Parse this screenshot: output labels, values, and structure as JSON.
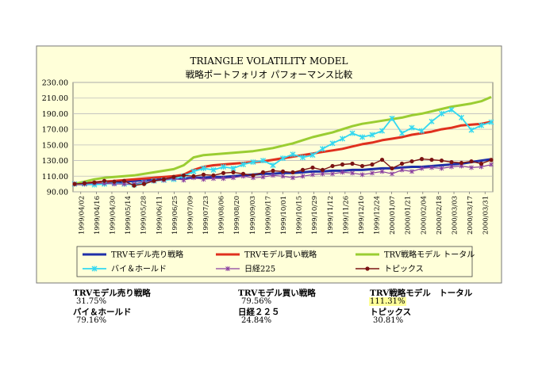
{
  "chart_data": {
    "type": "line",
    "title": "TRIANGLE VOLATILITY MODEL",
    "subtitle": "戦略ポートフォリオ パフォーマンス比較",
    "ylim": [
      90,
      230
    ],
    "yticks": [
      "230.00",
      "210.00",
      "190.00",
      "170.00",
      "150.00",
      "130.00",
      "110.00",
      "90.00"
    ],
    "ytick_values": [
      230,
      210,
      190,
      170,
      150,
      130,
      110,
      90
    ],
    "xtick_labels": [
      "1999/04/02",
      "1999/04/16",
      "1999/04/30",
      "1999/05/14",
      "1999/05/28",
      "1999/06/11",
      "1999/06/25",
      "1999/07/09",
      "1999/07/23",
      "1999/08/06",
      "1999/08/20",
      "1999/09/03",
      "1999/09/17",
      "1999/10/01",
      "1999/10/15",
      "1999/10/29",
      "1999/11/12",
      "1999/11/26",
      "1999/12/10",
      "1999/12/24",
      "2000/01/07",
      "2000/01/21",
      "2000/02/04",
      "2000/02/18",
      "2000/03/03",
      "2000/03/17",
      "2000/03/31"
    ],
    "plot_background": "#ffffd9",
    "outer_background": "#ffffd9",
    "grid": true,
    "legend_position": "bottom",
    "series": [
      {
        "name": "TRVモデル売り戦略",
        "color": "#1f2fa8",
        "marker": "none",
        "values": [
          100,
          100,
          100,
          101,
          102,
          103,
          104,
          105,
          106,
          106,
          107,
          107,
          108,
          108,
          109,
          109,
          110,
          111,
          112,
          113,
          113,
          114,
          114,
          115,
          116,
          116,
          117,
          117,
          118,
          118,
          119,
          120,
          120,
          121,
          122,
          122,
          123,
          124,
          125,
          126,
          128,
          130,
          131.75
        ]
      },
      {
        "name": "TRVモデル買い戦略",
        "color": "#e0301e",
        "marker": "none",
        "values": [
          100,
          101,
          102,
          103,
          104,
          105,
          106,
          107,
          108,
          109,
          110,
          112,
          118,
          122,
          124,
          125,
          126,
          127,
          128,
          129,
          131,
          133,
          135,
          137,
          139,
          141,
          143,
          145,
          148,
          151,
          153,
          156,
          158,
          160,
          163,
          165,
          167,
          170,
          172,
          175,
          176,
          177,
          179.56
        ]
      },
      {
        "name": "TRV戦略モデル トータル",
        "color": "#9acd32",
        "marker": "none",
        "values": [
          100,
          103,
          106,
          108,
          109,
          110,
          111,
          113,
          115,
          117,
          119,
          124,
          134,
          137,
          138,
          139,
          140,
          141,
          142,
          144,
          146,
          149,
          152,
          156,
          160,
          163,
          166,
          170,
          174,
          177,
          179,
          181,
          183,
          185,
          188,
          190,
          193,
          196,
          199,
          201,
          203,
          206,
          211.31
        ]
      },
      {
        "name": "バイ＆ホールド",
        "color": "#33d8f0",
        "marker": "x",
        "values": [
          100,
          100,
          99,
          100,
          101,
          100,
          99,
          102,
          104,
          105,
          106,
          110,
          116,
          120,
          118,
          122,
          120,
          125,
          128,
          130,
          124,
          133,
          138,
          134,
          137,
          145,
          152,
          158,
          165,
          160,
          163,
          168,
          184,
          165,
          172,
          168,
          180,
          190,
          195,
          185,
          169,
          175,
          179.16
        ]
      },
      {
        "name": "日経225",
        "color": "#8a3fa0",
        "marker": "star",
        "values": [
          100,
          100,
          101,
          101,
          100,
          100,
          100,
          103,
          104,
          105,
          107,
          105,
          108,
          106,
          107,
          107,
          108,
          110,
          108,
          109,
          111,
          110,
          108,
          110,
          112,
          113,
          113,
          115,
          114,
          112,
          114,
          116,
          113,
          118,
          116,
          120,
          121,
          120,
          122,
          123,
          121,
          122,
          124.84
        ]
      },
      {
        "name": "トピックス",
        "color": "#7b1313",
        "marker": "dot",
        "values": [
          100,
          101,
          102,
          104,
          103,
          104,
          98,
          100,
          104,
          106,
          109,
          111,
          110,
          112,
          111,
          114,
          115,
          113,
          111,
          115,
          117,
          116,
          115,
          118,
          121,
          118,
          123,
          125,
          126,
          123,
          125,
          131,
          120,
          126,
          129,
          132,
          131,
          130,
          128,
          127,
          129,
          126,
          130.81
        ]
      }
    ]
  },
  "summary": {
    "items": [
      {
        "label": "TRVモデル売り戦略",
        "value": "31.75%"
      },
      {
        "label": "TRVモデル買い戦略",
        "value": "79.56%"
      },
      {
        "label": "TRV戦略モデル　トータル",
        "value": "111.31%",
        "highlight": "#ffff99"
      },
      {
        "label": "バイ＆ホールド",
        "value": "79.16%"
      },
      {
        "label": "日経２２５",
        "value": "24.84%"
      },
      {
        "label": "トピックス",
        "value": "30.81%"
      }
    ]
  }
}
